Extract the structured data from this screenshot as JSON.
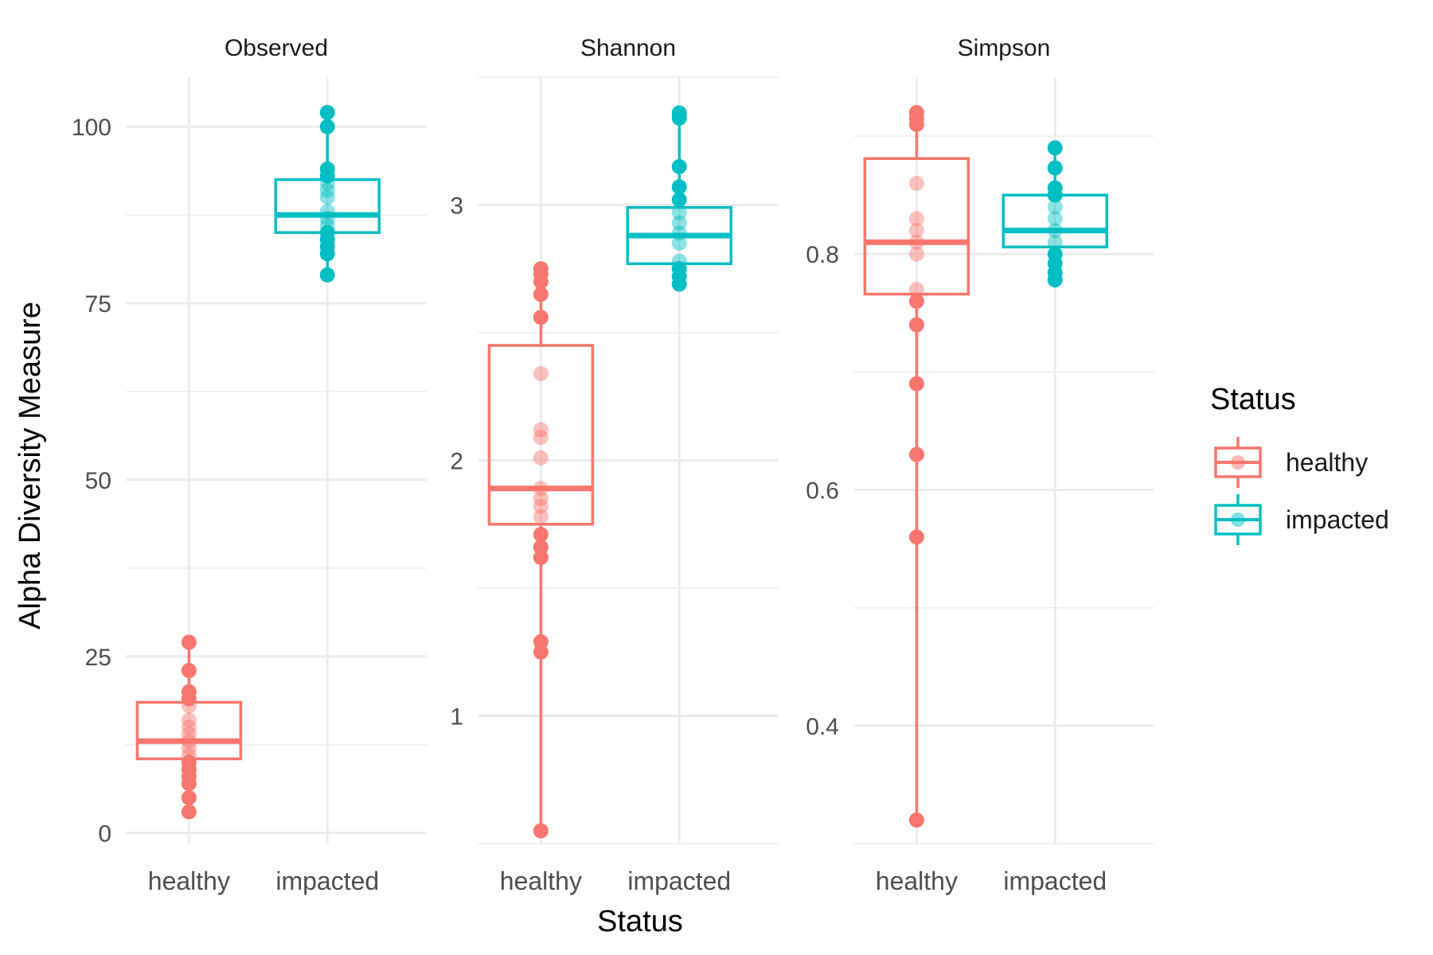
{
  "chart_data": {
    "type": "boxplot",
    "xlabel": "Status",
    "ylabel": "Alpha Diversity Measure",
    "categories": [
      "healthy",
      "impacted"
    ],
    "legend": {
      "title": "Status",
      "position": "right",
      "entries": [
        {
          "label": "healthy",
          "color": "#F8766D"
        },
        {
          "label": "impacted",
          "color": "#00BFC4"
        }
      ]
    },
    "grid": true,
    "facets": [
      {
        "title": "Observed",
        "ylim": [
          -1.5,
          107
        ],
        "yticks": [
          0,
          25,
          50,
          75,
          100
        ],
        "ytick_labels": [
          "0",
          "25",
          "50",
          "75",
          "100"
        ],
        "boxes": [
          {
            "category": "healthy",
            "q1": 10.5,
            "median": 13,
            "q3": 18.5,
            "whisker_low": 3,
            "whisker_high": 27
          },
          {
            "category": "impacted",
            "q1": 85,
            "median": 87.5,
            "q3": 92.5,
            "whisker_low": 79,
            "whisker_high": 102
          }
        ],
        "points": [
          {
            "category": "healthy",
            "values": [
              3,
              5,
              7,
              8,
              9,
              10,
              11,
              12,
              13,
              14,
              15,
              16,
              18,
              19,
              20,
              23,
              27
            ]
          },
          {
            "category": "impacted",
            "values": [
              79,
              82,
              83,
              84,
              85,
              86,
              87,
              88,
              90,
              91,
              92,
              93,
              94,
              100,
              102
            ]
          }
        ]
      },
      {
        "title": "Shannon",
        "ylim": [
          0.5,
          3.5
        ],
        "yticks": [
          1,
          2,
          3
        ],
        "ytick_labels": [
          "1",
          "2",
          "3"
        ],
        "boxes": [
          {
            "category": "healthy",
            "q1": 1.75,
            "median": 1.89,
            "q3": 2.45,
            "whisker_low": 0.55,
            "whisker_high": 2.75
          },
          {
            "category": "impacted",
            "q1": 2.77,
            "median": 2.88,
            "q3": 2.99,
            "whisker_low": 2.69,
            "whisker_high": 3.35
          }
        ],
        "points": [
          {
            "category": "healthy",
            "values": [
              0.55,
              1.25,
              1.29,
              1.62,
              1.66,
              1.71,
              1.78,
              1.82,
              1.85,
              1.89,
              2.01,
              2.09,
              2.12,
              2.34,
              2.56,
              2.65,
              2.7,
              2.73,
              2.75
            ]
          },
          {
            "category": "impacted",
            "values": [
              2.69,
              2.72,
              2.75,
              2.78,
              2.85,
              2.89,
              2.93,
              2.97,
              3.02,
              3.07,
              3.15,
              3.34,
              3.36
            ]
          }
        ]
      },
      {
        "title": "Simpson",
        "ylim": [
          0.3,
          0.95
        ],
        "yticks": [
          0.4,
          0.6,
          0.8
        ],
        "ytick_labels": [
          "0.4",
          "0.6",
          "0.8"
        ],
        "boxes": [
          {
            "category": "healthy",
            "q1": 0.766,
            "median": 0.81,
            "q3": 0.881,
            "whisker_low": 0.32,
            "whisker_high": 0.92
          },
          {
            "category": "impacted",
            "q1": 0.806,
            "median": 0.82,
            "q3": 0.85,
            "whisker_low": 0.778,
            "whisker_high": 0.89
          }
        ],
        "points": [
          {
            "category": "healthy",
            "values": [
              0.32,
              0.56,
              0.63,
              0.69,
              0.74,
              0.76,
              0.77,
              0.8,
              0.81,
              0.82,
              0.83,
              0.86,
              0.91,
              0.915,
              0.92
            ]
          },
          {
            "category": "impacted",
            "values": [
              0.778,
              0.784,
              0.792,
              0.8,
              0.81,
              0.82,
              0.83,
              0.84,
              0.85,
              0.856,
              0.873,
              0.89
            ]
          }
        ]
      }
    ]
  }
}
